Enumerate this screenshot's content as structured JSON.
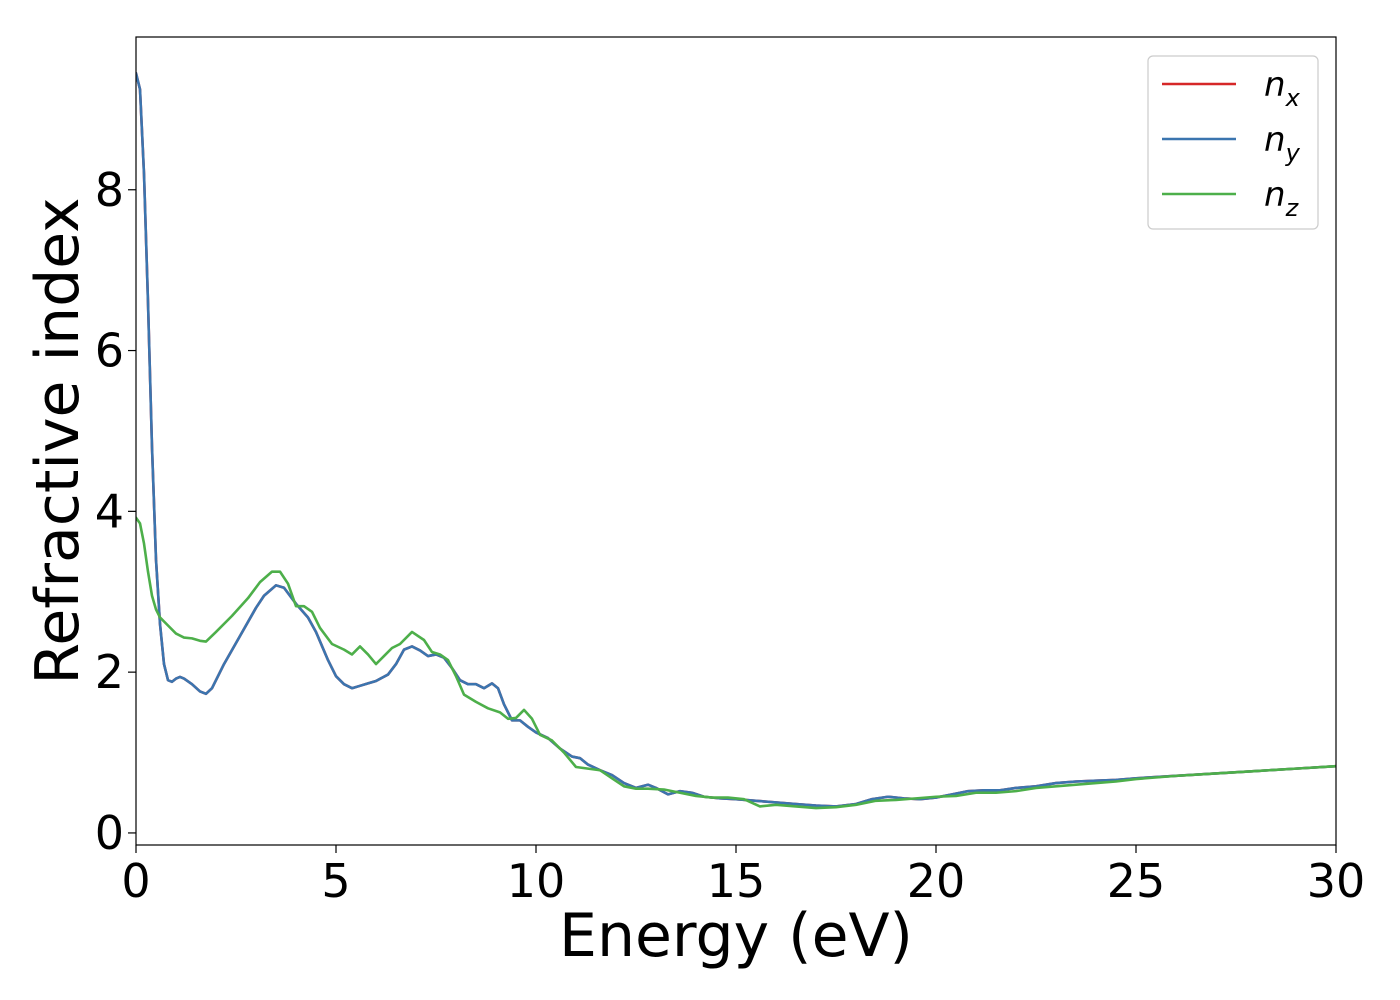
{
  "chart_data": {
    "type": "line",
    "xlabel": "Energy (eV)",
    "ylabel": "Refractive index",
    "xlim": [
      0,
      30
    ],
    "ylim": [
      -0.15,
      9.9
    ],
    "xticks": [
      0,
      5,
      10,
      15,
      20,
      25,
      30
    ],
    "xtick_labels": [
      "0",
      "5",
      "10",
      "15",
      "20",
      "25",
      "30"
    ],
    "yticks": [
      0,
      2,
      4,
      6,
      8
    ],
    "ytick_labels": [
      "0",
      "2",
      "4",
      "6",
      "8"
    ],
    "grid": false,
    "legend_position": "top-right",
    "series": [
      {
        "name": "n_x",
        "label_main": "n",
        "label_sub": "x",
        "color": "#d62728",
        "points": [
          [
            0,
            9.45
          ],
          [
            0.1,
            9.25
          ],
          [
            0.2,
            8.2
          ],
          [
            0.3,
            6.6
          ],
          [
            0.4,
            4.8
          ],
          [
            0.5,
            3.4
          ],
          [
            0.6,
            2.6
          ],
          [
            0.7,
            2.1
          ],
          [
            0.8,
            1.9
          ],
          [
            0.9,
            1.88
          ],
          [
            1.0,
            1.92
          ],
          [
            1.1,
            1.94
          ],
          [
            1.2,
            1.92
          ],
          [
            1.4,
            1.85
          ],
          [
            1.6,
            1.76
          ],
          [
            1.75,
            1.73
          ],
          [
            1.9,
            1.8
          ],
          [
            2.2,
            2.1
          ],
          [
            2.6,
            2.45
          ],
          [
            3.0,
            2.8
          ],
          [
            3.2,
            2.95
          ],
          [
            3.5,
            3.08
          ],
          [
            3.7,
            3.05
          ],
          [
            4.0,
            2.85
          ],
          [
            4.3,
            2.68
          ],
          [
            4.5,
            2.5
          ],
          [
            4.8,
            2.15
          ],
          [
            5.0,
            1.95
          ],
          [
            5.2,
            1.85
          ],
          [
            5.4,
            1.8
          ],
          [
            5.6,
            1.83
          ],
          [
            5.8,
            1.86
          ],
          [
            6.0,
            1.89
          ],
          [
            6.3,
            1.97
          ],
          [
            6.5,
            2.1
          ],
          [
            6.7,
            2.28
          ],
          [
            6.9,
            2.32
          ],
          [
            7.1,
            2.27
          ],
          [
            7.3,
            2.2
          ],
          [
            7.5,
            2.22
          ],
          [
            7.7,
            2.18
          ],
          [
            7.9,
            2.05
          ],
          [
            8.1,
            1.9
          ],
          [
            8.3,
            1.85
          ],
          [
            8.5,
            1.85
          ],
          [
            8.7,
            1.8
          ],
          [
            8.9,
            1.86
          ],
          [
            9.05,
            1.8
          ],
          [
            9.2,
            1.6
          ],
          [
            9.4,
            1.4
          ],
          [
            9.6,
            1.4
          ],
          [
            9.8,
            1.32
          ],
          [
            10.0,
            1.25
          ],
          [
            10.3,
            1.18
          ],
          [
            10.6,
            1.05
          ],
          [
            10.9,
            0.95
          ],
          [
            11.1,
            0.93
          ],
          [
            11.3,
            0.85
          ],
          [
            11.6,
            0.78
          ],
          [
            11.9,
            0.72
          ],
          [
            12.2,
            0.62
          ],
          [
            12.5,
            0.56
          ],
          [
            12.8,
            0.6
          ],
          [
            13.0,
            0.56
          ],
          [
            13.3,
            0.48
          ],
          [
            13.6,
            0.52
          ],
          [
            13.9,
            0.5
          ],
          [
            14.2,
            0.45
          ],
          [
            14.6,
            0.43
          ],
          [
            15.0,
            0.42
          ],
          [
            15.5,
            0.4
          ],
          [
            16.0,
            0.38
          ],
          [
            16.5,
            0.36
          ],
          [
            17.0,
            0.34
          ],
          [
            17.5,
            0.33
          ],
          [
            18.0,
            0.36
          ],
          [
            18.4,
            0.42
          ],
          [
            18.8,
            0.45
          ],
          [
            19.2,
            0.43
          ],
          [
            19.6,
            0.42
          ],
          [
            20.0,
            0.44
          ],
          [
            20.4,
            0.48
          ],
          [
            20.8,
            0.52
          ],
          [
            21.2,
            0.53
          ],
          [
            21.6,
            0.53
          ],
          [
            22.0,
            0.56
          ],
          [
            22.5,
            0.58
          ],
          [
            23.0,
            0.62
          ],
          [
            23.5,
            0.64
          ],
          [
            24.0,
            0.65
          ],
          [
            24.5,
            0.66
          ],
          [
            25.0,
            0.68
          ],
          [
            26.0,
            0.71
          ],
          [
            27.0,
            0.74
          ],
          [
            28.0,
            0.77
          ],
          [
            29.0,
            0.8
          ],
          [
            30.0,
            0.83
          ]
        ]
      },
      {
        "name": "n_y",
        "label_main": "n",
        "label_sub": "y",
        "color": "#3b75af",
        "points": [
          [
            0,
            9.45
          ],
          [
            0.1,
            9.25
          ],
          [
            0.2,
            8.2
          ],
          [
            0.3,
            6.6
          ],
          [
            0.4,
            4.8
          ],
          [
            0.5,
            3.4
          ],
          [
            0.6,
            2.6
          ],
          [
            0.7,
            2.1
          ],
          [
            0.8,
            1.9
          ],
          [
            0.9,
            1.88
          ],
          [
            1.0,
            1.92
          ],
          [
            1.1,
            1.94
          ],
          [
            1.2,
            1.92
          ],
          [
            1.4,
            1.85
          ],
          [
            1.6,
            1.76
          ],
          [
            1.75,
            1.73
          ],
          [
            1.9,
            1.8
          ],
          [
            2.2,
            2.1
          ],
          [
            2.6,
            2.45
          ],
          [
            3.0,
            2.8
          ],
          [
            3.2,
            2.95
          ],
          [
            3.5,
            3.08
          ],
          [
            3.7,
            3.05
          ],
          [
            4.0,
            2.85
          ],
          [
            4.3,
            2.68
          ],
          [
            4.5,
            2.5
          ],
          [
            4.8,
            2.15
          ],
          [
            5.0,
            1.95
          ],
          [
            5.2,
            1.85
          ],
          [
            5.4,
            1.8
          ],
          [
            5.6,
            1.83
          ],
          [
            5.8,
            1.86
          ],
          [
            6.0,
            1.89
          ],
          [
            6.3,
            1.97
          ],
          [
            6.5,
            2.1
          ],
          [
            6.7,
            2.28
          ],
          [
            6.9,
            2.32
          ],
          [
            7.1,
            2.27
          ],
          [
            7.3,
            2.2
          ],
          [
            7.5,
            2.22
          ],
          [
            7.7,
            2.18
          ],
          [
            7.9,
            2.05
          ],
          [
            8.1,
            1.9
          ],
          [
            8.3,
            1.85
          ],
          [
            8.5,
            1.85
          ],
          [
            8.7,
            1.8
          ],
          [
            8.9,
            1.86
          ],
          [
            9.05,
            1.8
          ],
          [
            9.2,
            1.6
          ],
          [
            9.4,
            1.4
          ],
          [
            9.6,
            1.4
          ],
          [
            9.8,
            1.32
          ],
          [
            10.0,
            1.25
          ],
          [
            10.3,
            1.18
          ],
          [
            10.6,
            1.05
          ],
          [
            10.9,
            0.95
          ],
          [
            11.1,
            0.93
          ],
          [
            11.3,
            0.85
          ],
          [
            11.6,
            0.78
          ],
          [
            11.9,
            0.72
          ],
          [
            12.2,
            0.62
          ],
          [
            12.5,
            0.56
          ],
          [
            12.8,
            0.6
          ],
          [
            13.0,
            0.56
          ],
          [
            13.3,
            0.48
          ],
          [
            13.6,
            0.52
          ],
          [
            13.9,
            0.5
          ],
          [
            14.2,
            0.45
          ],
          [
            14.6,
            0.43
          ],
          [
            15.0,
            0.42
          ],
          [
            15.5,
            0.4
          ],
          [
            16.0,
            0.38
          ],
          [
            16.5,
            0.36
          ],
          [
            17.0,
            0.34
          ],
          [
            17.5,
            0.33
          ],
          [
            18.0,
            0.36
          ],
          [
            18.4,
            0.42
          ],
          [
            18.8,
            0.45
          ],
          [
            19.2,
            0.43
          ],
          [
            19.6,
            0.42
          ],
          [
            20.0,
            0.44
          ],
          [
            20.4,
            0.48
          ],
          [
            20.8,
            0.52
          ],
          [
            21.2,
            0.53
          ],
          [
            21.6,
            0.53
          ],
          [
            22.0,
            0.56
          ],
          [
            22.5,
            0.58
          ],
          [
            23.0,
            0.62
          ],
          [
            23.5,
            0.64
          ],
          [
            24.0,
            0.65
          ],
          [
            24.5,
            0.66
          ],
          [
            25.0,
            0.68
          ],
          [
            26.0,
            0.71
          ],
          [
            27.0,
            0.74
          ],
          [
            28.0,
            0.77
          ],
          [
            29.0,
            0.8
          ],
          [
            30.0,
            0.83
          ]
        ]
      },
      {
        "name": "n_z",
        "label_main": "n",
        "label_sub": "z",
        "color": "#4daf4a",
        "points": [
          [
            0,
            3.92
          ],
          [
            0.1,
            3.85
          ],
          [
            0.2,
            3.6
          ],
          [
            0.3,
            3.25
          ],
          [
            0.4,
            2.95
          ],
          [
            0.5,
            2.78
          ],
          [
            0.6,
            2.68
          ],
          [
            0.8,
            2.58
          ],
          [
            1.0,
            2.48
          ],
          [
            1.2,
            2.43
          ],
          [
            1.4,
            2.42
          ],
          [
            1.6,
            2.39
          ],
          [
            1.75,
            2.38
          ],
          [
            2.0,
            2.5
          ],
          [
            2.4,
            2.7
          ],
          [
            2.8,
            2.92
          ],
          [
            3.1,
            3.12
          ],
          [
            3.4,
            3.25
          ],
          [
            3.6,
            3.25
          ],
          [
            3.8,
            3.1
          ],
          [
            4.0,
            2.82
          ],
          [
            4.2,
            2.82
          ],
          [
            4.4,
            2.75
          ],
          [
            4.6,
            2.55
          ],
          [
            4.9,
            2.35
          ],
          [
            5.2,
            2.28
          ],
          [
            5.4,
            2.22
          ],
          [
            5.6,
            2.32
          ],
          [
            5.8,
            2.22
          ],
          [
            6.0,
            2.1
          ],
          [
            6.2,
            2.2
          ],
          [
            6.4,
            2.3
          ],
          [
            6.6,
            2.35
          ],
          [
            6.9,
            2.5
          ],
          [
            7.2,
            2.4
          ],
          [
            7.4,
            2.25
          ],
          [
            7.6,
            2.22
          ],
          [
            7.8,
            2.15
          ],
          [
            8.0,
            1.95
          ],
          [
            8.2,
            1.72
          ],
          [
            8.5,
            1.63
          ],
          [
            8.8,
            1.55
          ],
          [
            9.1,
            1.5
          ],
          [
            9.3,
            1.42
          ],
          [
            9.5,
            1.43
          ],
          [
            9.7,
            1.53
          ],
          [
            9.9,
            1.42
          ],
          [
            10.1,
            1.22
          ],
          [
            10.4,
            1.15
          ],
          [
            10.7,
            1.0
          ],
          [
            11.0,
            0.82
          ],
          [
            11.3,
            0.8
          ],
          [
            11.6,
            0.78
          ],
          [
            11.9,
            0.68
          ],
          [
            12.2,
            0.58
          ],
          [
            12.5,
            0.55
          ],
          [
            12.8,
            0.55
          ],
          [
            13.2,
            0.54
          ],
          [
            13.6,
            0.5
          ],
          [
            14.0,
            0.46
          ],
          [
            14.4,
            0.44
          ],
          [
            14.8,
            0.44
          ],
          [
            15.2,
            0.42
          ],
          [
            15.6,
            0.33
          ],
          [
            16.0,
            0.35
          ],
          [
            16.5,
            0.33
          ],
          [
            17.0,
            0.31
          ],
          [
            17.5,
            0.32
          ],
          [
            18.0,
            0.35
          ],
          [
            18.5,
            0.4
          ],
          [
            19.0,
            0.41
          ],
          [
            19.5,
            0.43
          ],
          [
            20.0,
            0.45
          ],
          [
            20.5,
            0.46
          ],
          [
            21.0,
            0.5
          ],
          [
            21.5,
            0.5
          ],
          [
            22.0,
            0.52
          ],
          [
            22.5,
            0.56
          ],
          [
            23.0,
            0.58
          ],
          [
            23.5,
            0.6
          ],
          [
            24.0,
            0.62
          ],
          [
            24.5,
            0.64
          ],
          [
            25.0,
            0.67
          ],
          [
            26.0,
            0.71
          ],
          [
            27.0,
            0.74
          ],
          [
            28.0,
            0.77
          ],
          [
            29.0,
            0.8
          ],
          [
            30.0,
            0.83
          ]
        ]
      }
    ]
  }
}
